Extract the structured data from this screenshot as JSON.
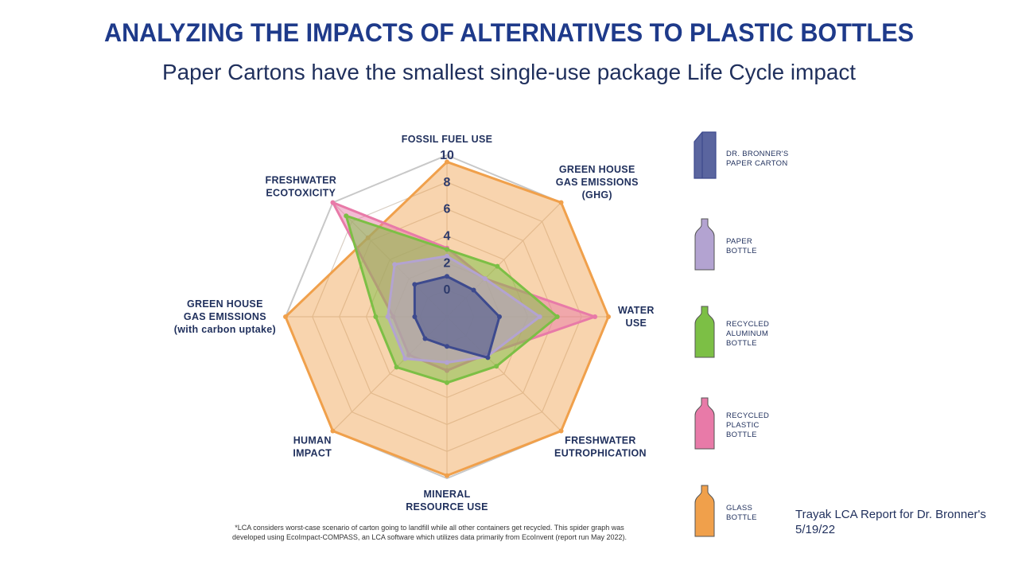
{
  "chart_data": {
    "type": "radar",
    "title": "ANALYZING THE IMPACTS OF ALTERNATIVES TO PLASTIC BOTTLES",
    "subtitle": "Paper Cartons have the smallest single-use package Life Cycle impact",
    "categories": [
      "FOSSIL FUEL USE",
      "GREEN HOUSE\nGAS EMISSIONS\n(GHG)",
      "WATER\nUSE",
      "FRESHWATER\nEUTROPHICATION",
      "MINERAL\nRESOURCE USE",
      "HUMAN\nIMPACT",
      "GREEN HOUSE\nGAS EMISSIONS\n(with carbon uptake)",
      "FRESHWATER\nECOTOXICITY"
    ],
    "rlim": [
      -2,
      10
    ],
    "rticks": [
      0,
      2,
      4,
      6,
      8,
      10
    ],
    "grid": true,
    "series": [
      {
        "name": "GLASS\nBOTTLE",
        "color": "#f0a04b",
        "values": [
          9.5,
          10,
          10,
          10,
          9.8,
          10,
          10,
          6.3
        ]
      },
      {
        "name": "RECYCLED\nPLASTIC\nBOTTLE",
        "color": "#e87aa8",
        "values": [
          3.1,
          2,
          9,
          2,
          2,
          2,
          2,
          10
        ]
      },
      {
        "name": "RECYCLED\nALUMINUM\nBOTTLE",
        "color": "#7cbf45",
        "values": [
          3,
          3.3,
          6.2,
          3.2,
          2.9,
          3.3,
          3.3,
          8.6
        ]
      },
      {
        "name": "PAPER\nBOTTLE",
        "color": "#b3a3d1",
        "values": [
          2.5,
          2,
          4.9,
          2.2,
          1.4,
          2.4,
          2.4,
          3.5
        ]
      },
      {
        "name": "DR. BRONNER'S\nPAPER CARTON",
        "color": "#3d4a8e",
        "values": [
          1,
          0.8,
          1.9,
          2.3,
          0.2,
          0.3,
          0.4,
          1.4
        ]
      }
    ],
    "footnote": "*LCA considers worst-case scenario of carton going to landfill while all other containers get recycled. This spider graph was\ndeveloped using EcoImpact-COMPASS, an LCA software which utilizes data primarily from EcoInvent (report run May 2022).",
    "source": "Trayak LCA Report for Dr. Bronner's\n5/19/22"
  }
}
